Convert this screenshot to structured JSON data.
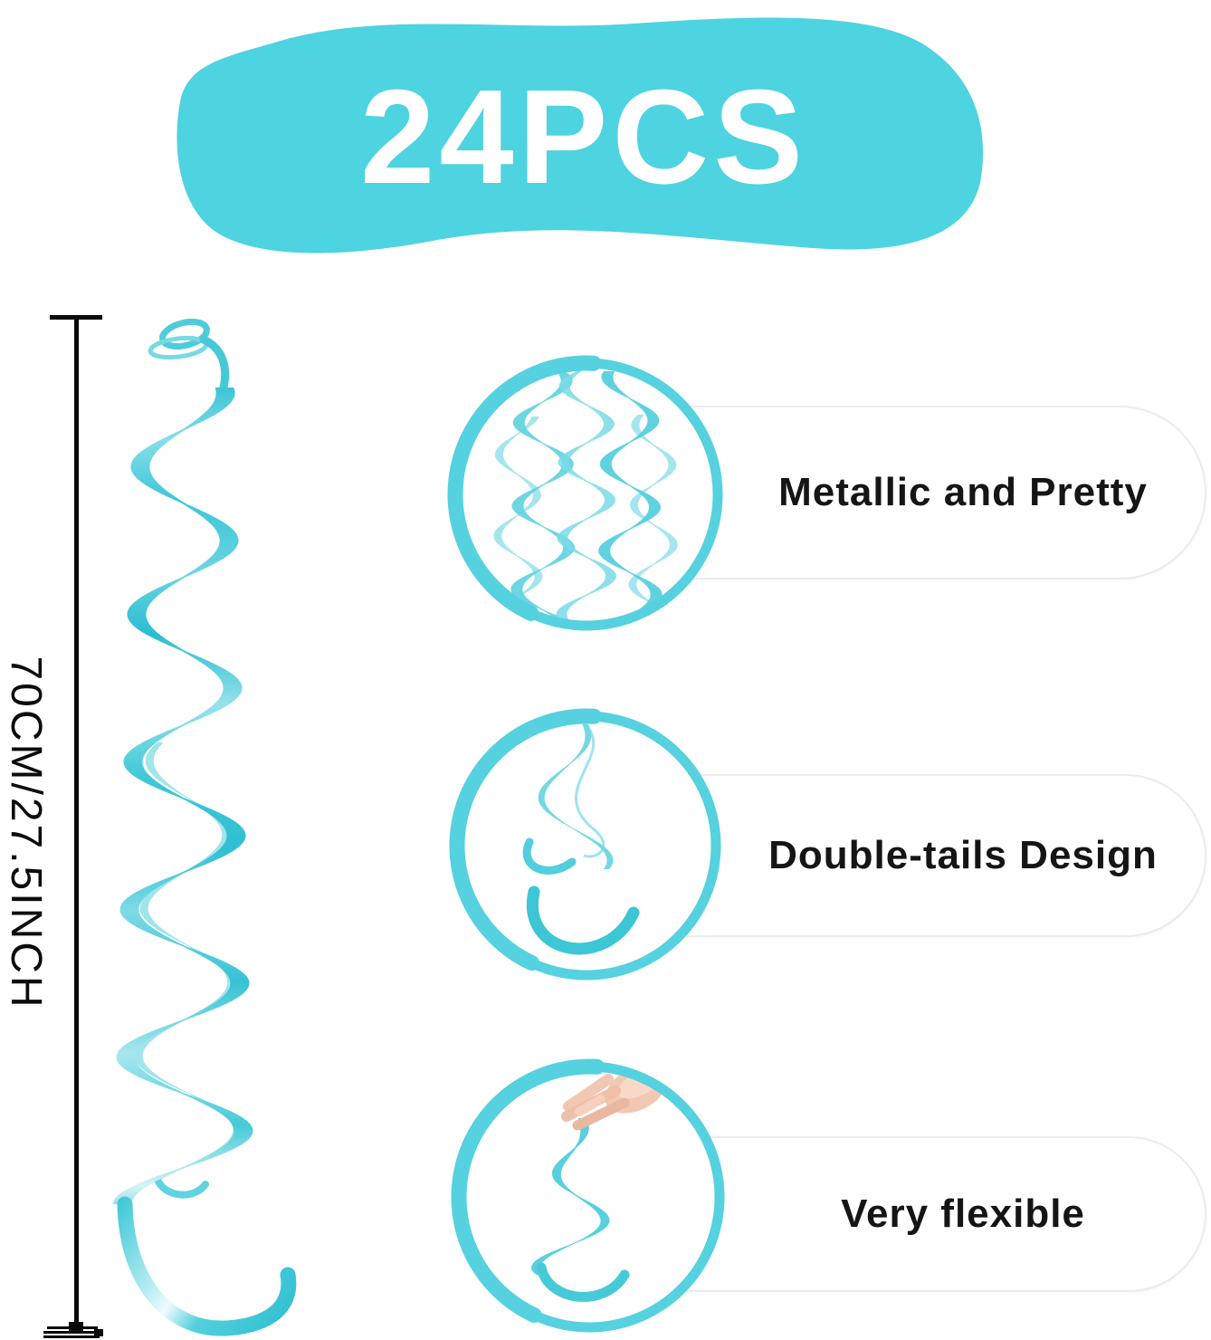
{
  "banner": {
    "label": "24PCS"
  },
  "measurement": {
    "label": "70CM/27.5INCH"
  },
  "features": [
    {
      "label": "Metallic and Pretty",
      "icon": "multiple-hanging-swirls-photo"
    },
    {
      "label": "Double-tails Design",
      "icon": "double-tail-swirl-photo"
    },
    {
      "label": "Very flexible",
      "icon": "hand-holding-swirl-photo"
    }
  ],
  "colors": {
    "accent_teal": "#4ed3e0",
    "swirl_teal": "#3ec9da",
    "ring_teal": "#56d1df",
    "label_text": "#151515",
    "pill_border": "#ececec",
    "measure_line": "#0a0a0a",
    "hand_skin": "#f2c8b2",
    "banner_text": "#ffffff"
  }
}
